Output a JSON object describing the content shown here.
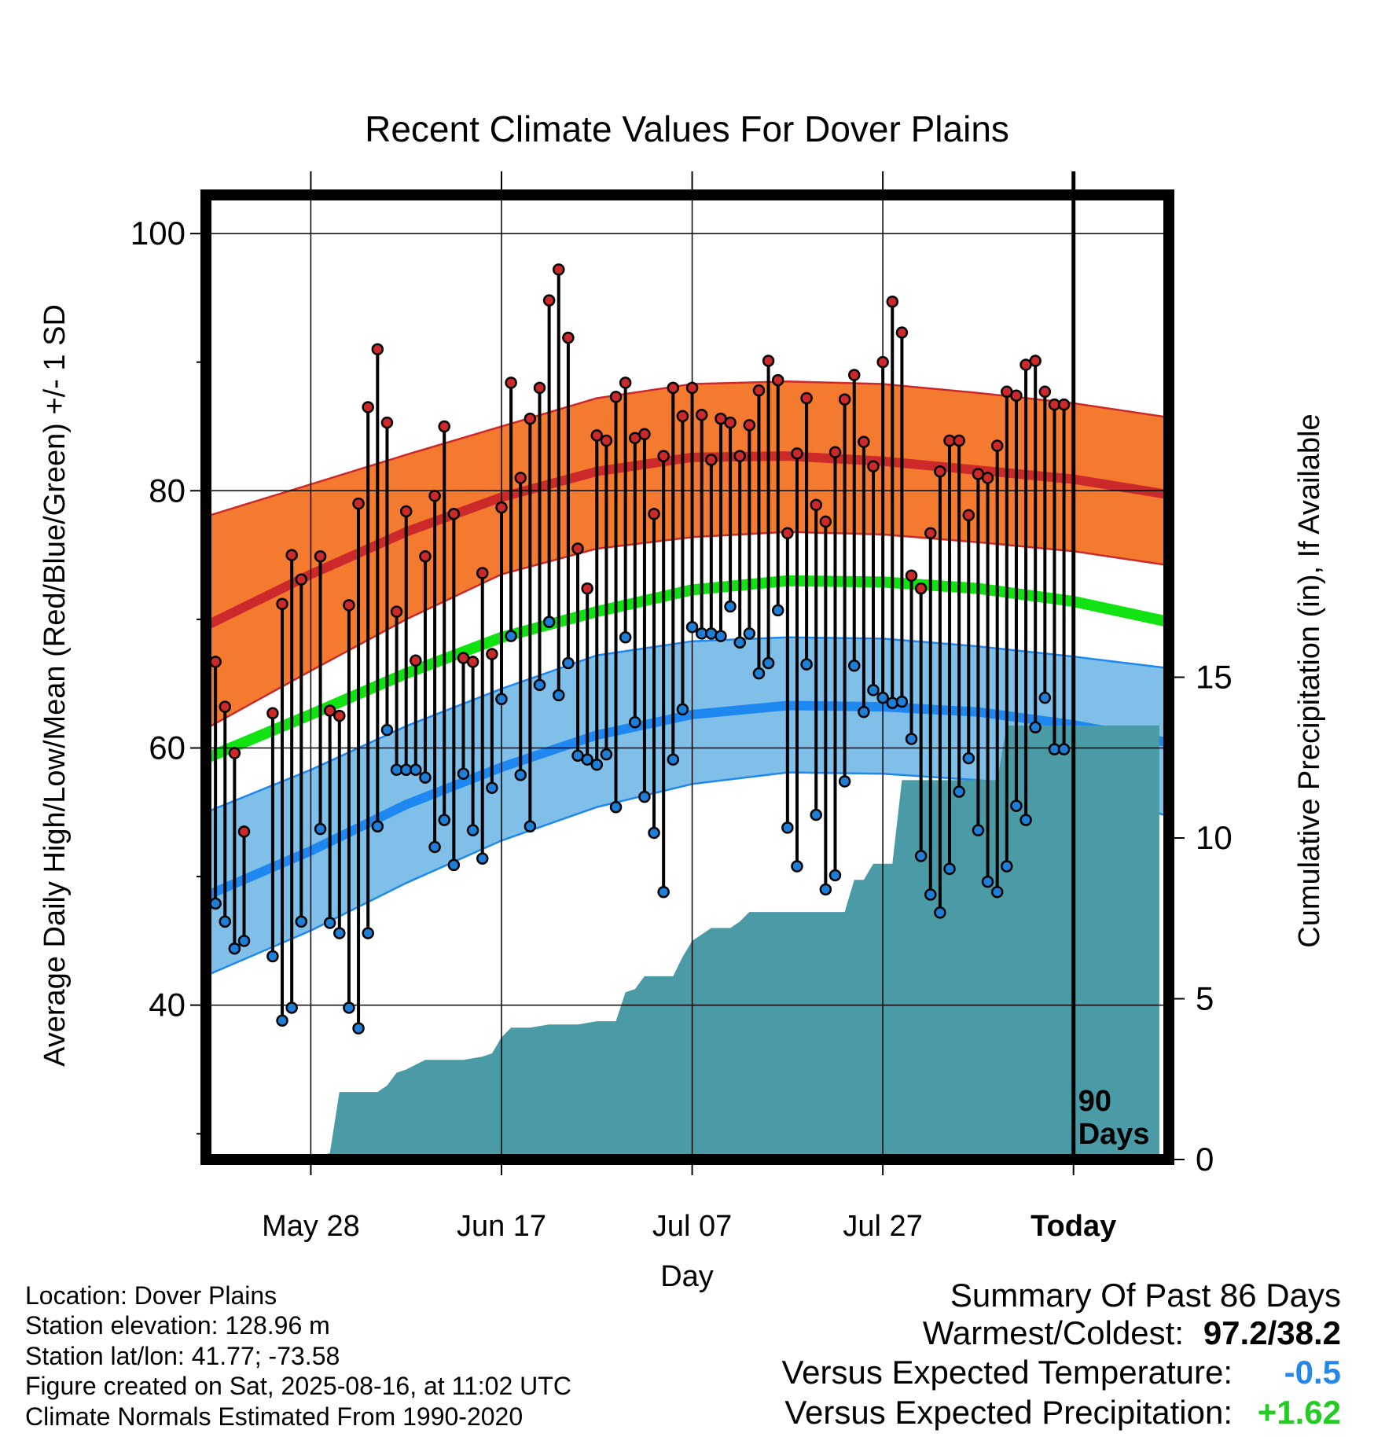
{
  "chart_data": {
    "type": "line",
    "title": "Recent Climate Values For Dover Plains",
    "xlabel": "Day",
    "ylabel": "Average Daily High/Low/Mean (Red/Blue/Green) +/- 1 SD",
    "y2label": "Cumulative Precipitation (in), If Available",
    "x_tick_labels": [
      "May 28",
      "Jun 17",
      "Jul 07",
      "Jul 27",
      "Today"
    ],
    "x_tick_days": [
      -80,
      -60,
      -40,
      -20,
      0
    ],
    "xlim_days": [
      -91,
      10
    ],
    "ylim": [
      28,
      103
    ],
    "y_ticks": [
      40,
      60,
      80,
      100
    ],
    "y2lim": [
      0,
      30
    ],
    "y2_ticks": [
      0,
      5,
      10,
      15
    ],
    "grid": true,
    "today_marker_label": [
      "90",
      "Days"
    ],
    "normal_curves": {
      "day": [
        -91,
        -80,
        -70,
        -60,
        -50,
        -40,
        -30,
        -20,
        -10,
        0,
        10
      ],
      "high_mean": [
        69.5,
        73.5,
        76.8,
        79.5,
        81.5,
        82.6,
        82.7,
        82.3,
        81.6,
        80.9,
        79.7
      ],
      "high_upper": [
        78.0,
        80.5,
        82.8,
        85.0,
        87.2,
        88.3,
        88.5,
        88.3,
        87.6,
        86.8,
        85.7
      ],
      "high_lower": [
        61.5,
        66.0,
        70.0,
        73.5,
        75.5,
        76.4,
        76.8,
        76.6,
        76.0,
        75.3,
        74.2
      ],
      "mean": [
        59.2,
        62.6,
        65.8,
        68.6,
        70.6,
        72.3,
        73.0,
        72.9,
        72.4,
        71.4,
        69.8
      ],
      "low_mean": [
        48.5,
        52.0,
        55.6,
        58.5,
        61.0,
        62.6,
        63.3,
        63.2,
        62.8,
        61.8,
        60.4
      ],
      "low_upper": [
        55.0,
        58.3,
        61.7,
        64.6,
        67.2,
        68.3,
        68.6,
        68.5,
        67.9,
        67.1,
        66.2
      ],
      "low_lower": [
        42.3,
        45.8,
        49.5,
        52.8,
        55.4,
        57.2,
        58.1,
        58.0,
        57.5,
        56.7,
        54.7
      ]
    },
    "series": [
      {
        "name": "Daily High",
        "color": "#cc2a2a",
        "x": [
          -90,
          -89,
          -88,
          -87,
          -84,
          -83,
          -82,
          -81,
          -79,
          -78,
          -77,
          -76,
          -75,
          -74,
          -73,
          -72,
          -71,
          -70,
          -69,
          -68,
          -67,
          -66,
          -65,
          -64,
          -63,
          -62,
          -61,
          -60,
          -59,
          -58,
          -57,
          -56,
          -55,
          -54,
          -53,
          -52,
          -51,
          -50,
          -49,
          -48,
          -47,
          -46,
          -45,
          -44,
          -43,
          -42,
          -41,
          -40,
          -39,
          -38,
          -37,
          -36,
          -35,
          -34,
          -33,
          -32,
          -31,
          -30,
          -29,
          -28,
          -27,
          -26,
          -25,
          -24,
          -23,
          -22,
          -21,
          -20,
          -19,
          -18,
          -17,
          -16,
          -15,
          -14,
          -13,
          -12,
          -11,
          -10,
          -9,
          -8,
          -7,
          -6,
          -5,
          -4,
          -3,
          -2,
          -1
        ],
        "values": [
          66.7,
          63.2,
          59.6,
          53.5,
          62.7,
          71.2,
          75.0,
          73.1,
          74.9,
          62.9,
          62.5,
          71.1,
          79.0,
          86.5,
          91.0,
          85.3,
          70.6,
          78.4,
          66.8,
          74.9,
          79.6,
          85.0,
          78.2,
          67.0,
          66.7,
          73.6,
          67.3,
          78.7,
          88.4,
          81.0,
          85.6,
          88.0,
          94.8,
          97.2,
          91.9,
          75.5,
          72.4,
          84.3,
          83.9,
          87.3,
          88.4,
          84.1,
          84.4,
          78.2,
          82.7,
          88.0,
          85.8,
          88.0,
          85.9,
          82.4,
          85.6,
          85.3,
          82.7,
          85.1,
          87.8,
          90.1,
          88.6,
          76.7,
          82.9,
          87.2,
          78.9,
          77.6,
          83.0,
          87.1,
          89.0,
          83.8,
          81.9,
          90.0,
          94.7,
          92.3,
          73.4,
          72.4,
          76.7,
          81.5,
          83.9,
          83.9,
          78.1,
          81.3,
          81.0,
          83.5,
          87.7,
          87.4,
          89.8,
          90.1,
          87.7,
          86.7,
          86.7
        ]
      },
      {
        "name": "Daily Low",
        "color": "#1e7fd8",
        "x": [
          -90,
          -89,
          -88,
          -87,
          -84,
          -83,
          -82,
          -81,
          -79,
          -78,
          -77,
          -76,
          -75,
          -74,
          -73,
          -72,
          -71,
          -70,
          -69,
          -68,
          -67,
          -66,
          -65,
          -64,
          -63,
          -62,
          -61,
          -60,
          -59,
          -58,
          -57,
          -56,
          -55,
          -54,
          -53,
          -52,
          -51,
          -50,
          -49,
          -48,
          -47,
          -46,
          -45,
          -44,
          -43,
          -42,
          -41,
          -40,
          -39,
          -38,
          -37,
          -36,
          -35,
          -34,
          -33,
          -32,
          -31,
          -30,
          -29,
          -28,
          -27,
          -26,
          -25,
          -24,
          -23,
          -22,
          -21,
          -20,
          -19,
          -18,
          -17,
          -16,
          -15,
          -14,
          -13,
          -12,
          -11,
          -10,
          -9,
          -8,
          -7,
          -6,
          -5,
          -4,
          -3,
          -2,
          -1
        ],
        "values": [
          47.9,
          46.5,
          44.4,
          45.0,
          43.8,
          38.8,
          39.8,
          46.5,
          53.7,
          46.4,
          45.6,
          39.8,
          38.2,
          45.6,
          53.9,
          61.4,
          58.3,
          58.3,
          58.3,
          57.7,
          52.3,
          54.4,
          50.9,
          58.0,
          53.6,
          51.4,
          56.9,
          63.8,
          68.7,
          57.9,
          53.9,
          64.9,
          69.8,
          64.1,
          66.6,
          59.4,
          59.1,
          58.7,
          59.5,
          55.4,
          68.6,
          62.0,
          56.2,
          53.4,
          48.8,
          59.1,
          63.0,
          69.4,
          68.9,
          68.9,
          68.7,
          71.0,
          68.2,
          68.9,
          65.8,
          66.6,
          70.7,
          53.8,
          50.8,
          66.5,
          54.8,
          49.0,
          50.1,
          57.4,
          66.4,
          62.8,
          64.5,
          63.9,
          63.5,
          63.6,
          60.7,
          51.6,
          48.6,
          47.2,
          50.6,
          56.6,
          59.2,
          53.6,
          49.6,
          48.8,
          50.8,
          55.5,
          54.4,
          61.6,
          63.9,
          59.9,
          59.9
        ]
      },
      {
        "name": "Cumulative Precipitation",
        "color": "#4a9ba6",
        "x": [
          -91,
          -88,
          -86,
          -84,
          -80,
          -79,
          -78,
          -77,
          -74,
          -73,
          -72,
          -71,
          -70,
          -68,
          -66,
          -64,
          -62,
          -61,
          -60,
          -59,
          -58,
          -57,
          -55,
          -54,
          -52,
          -50,
          -48,
          -47,
          -46,
          -45,
          -44,
          -42,
          -41,
          -40,
          -39,
          -38,
          -36,
          -35,
          -34,
          -33,
          -30,
          -29,
          -26,
          -25,
          -24,
          -23,
          -22,
          -21,
          -20,
          -19,
          -18,
          -17,
          -16,
          -15,
          -14,
          -13,
          -12,
          -11,
          -10,
          -8,
          -7,
          -6,
          -5,
          -4,
          -3,
          -2,
          -1,
          0,
          9
        ],
        "values": [
          0,
          0,
          0,
          0,
          0,
          0.1,
          0.2,
          2.1,
          2.1,
          2.1,
          2.3,
          2.7,
          2.8,
          3.1,
          3.1,
          3.1,
          3.2,
          3.3,
          3.8,
          4.1,
          4.1,
          4.1,
          4.2,
          4.2,
          4.2,
          4.3,
          4.3,
          5.2,
          5.3,
          5.7,
          5.7,
          5.7,
          6.3,
          6.8,
          7.0,
          7.2,
          7.2,
          7.4,
          7.7,
          7.7,
          7.7,
          7.7,
          7.7,
          7.7,
          7.7,
          8.7,
          8.7,
          9.2,
          9.2,
          9.2,
          11.8,
          11.8,
          11.8,
          11.8,
          11.8,
          11.8,
          11.8,
          11.8,
          11.8,
          11.8,
          13.5,
          13.5,
          13.5,
          13.5,
          13.5,
          13.5,
          13.5,
          13.5,
          13.5
        ]
      }
    ]
  },
  "colors": {
    "high_band": "#f47a30",
    "high_line": "#cc2a2a",
    "mean_line": "#11e211",
    "low_band": "#80c0e8",
    "low_line": "#1e88f0",
    "precip_fill": "#4a9ba6",
    "temp_anomaly": "#2488e8",
    "precip_anomaly": "#22cc22"
  },
  "info": {
    "location": "Location: Dover Plains",
    "elevation": "Station elevation: 128.96 m",
    "latlon": "Station lat/lon: 41.77; -73.58",
    "created": "Figure created on Sat, 2025-08-16, at 11:02 UTC",
    "normals": "Climate Normals Estimated From 1990-2020"
  },
  "summary": {
    "title": "Summary Of Past 86 Days",
    "warmest_coldest_label": "Warmest/Coldest:",
    "warmest_coldest_value": "97.2/38.2",
    "temp_label": "Versus Expected Temperature:",
    "temp_value": "-0.5",
    "precip_label": "Versus Expected Precipitation:",
    "precip_value": "+1.62"
  }
}
